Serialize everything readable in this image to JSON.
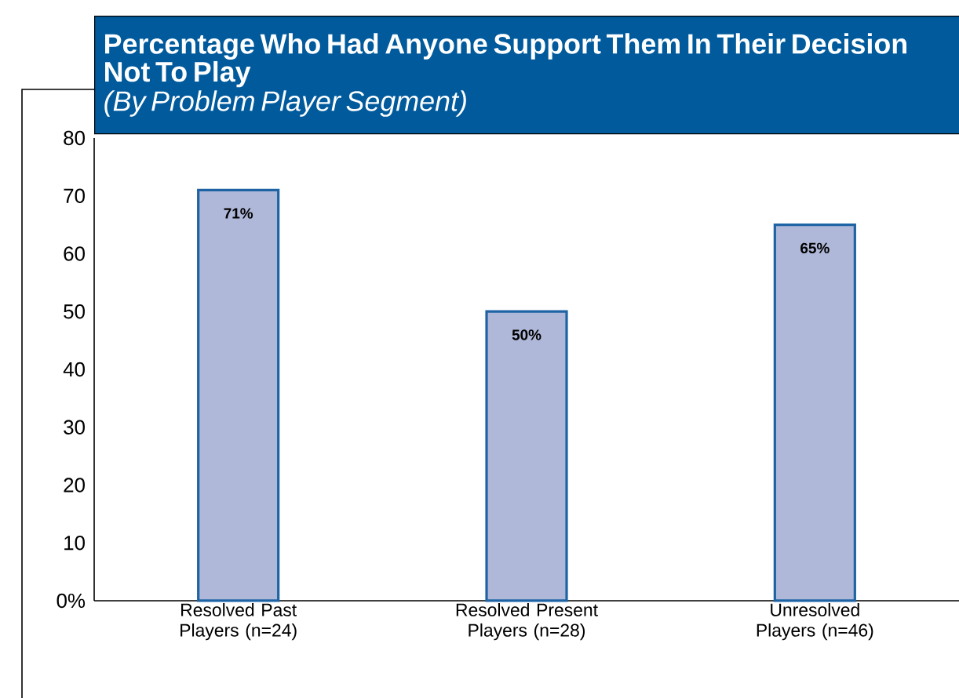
{
  "chart_data": {
    "type": "bar",
    "title": "Percentage Who Had Anyone Support Them In Their Decision Not To Play",
    "subtitle": "(By Problem Player Segment)",
    "categories": [
      "Resolved Past Players (n=24)",
      "Resolved Present Players (n=28)",
      "Unresolved Players (n=46)"
    ],
    "values": [
      71,
      50,
      65
    ],
    "value_labels": [
      "71%",
      "50%",
      "65%"
    ],
    "color": "#b0b8d9",
    "ylim": [
      0,
      80
    ],
    "yticks": [
      {
        "value": 0,
        "label": "0%"
      },
      10,
      20,
      30,
      40,
      50,
      60,
      70,
      80
    ],
    "grid": false
  }
}
